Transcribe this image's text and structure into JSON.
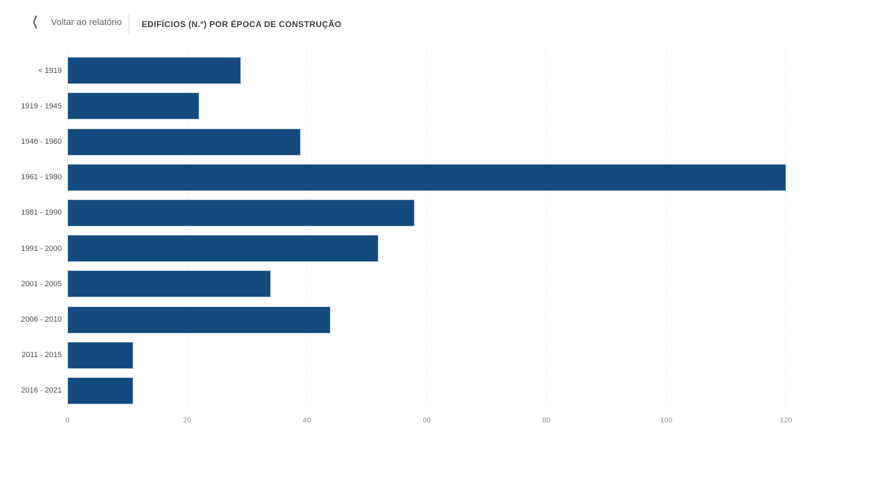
{
  "header": {
    "back_label": "Voltar ao relatório",
    "back_chevron": "❬",
    "title": "EDIFÍCIOS (N.º) POR ÉPOCA DE CONSTRUÇÃO"
  },
  "chart_data": {
    "type": "bar",
    "orientation": "horizontal",
    "title": "EDIFÍCIOS (N.º) POR ÉPOCA DE CONSTRUÇÃO",
    "categories": [
      "< 1919",
      "1919 - 1945",
      "1946 - 1960",
      "1961 - 1980",
      "1981 - 1990",
      "1991 - 2000",
      "2001 - 2005",
      "2006 - 2010",
      "2011 - 2015",
      "2016 - 2021"
    ],
    "values": [
      29,
      22,
      39,
      120,
      58,
      52,
      34,
      44,
      11,
      11
    ],
    "x_ticks": [
      0,
      20,
      40,
      60,
      80,
      100,
      120
    ],
    "xlim": [
      0,
      120
    ],
    "ylabel": "",
    "xlabel": "",
    "grid": "vertical-dotted",
    "legend": "none",
    "data_labels": false,
    "bar_color": "#144a7d"
  },
  "colors": {
    "bar": "#144a7d",
    "bar_border": "#b5cadc",
    "grid": "#d9d9d9",
    "tick_label": "#8c8c8c",
    "category_label": "#4b4b55",
    "back": "#5f6368",
    "title": "#3c3c3c",
    "divider": "#d6d6d6",
    "background": "#ffffff"
  }
}
